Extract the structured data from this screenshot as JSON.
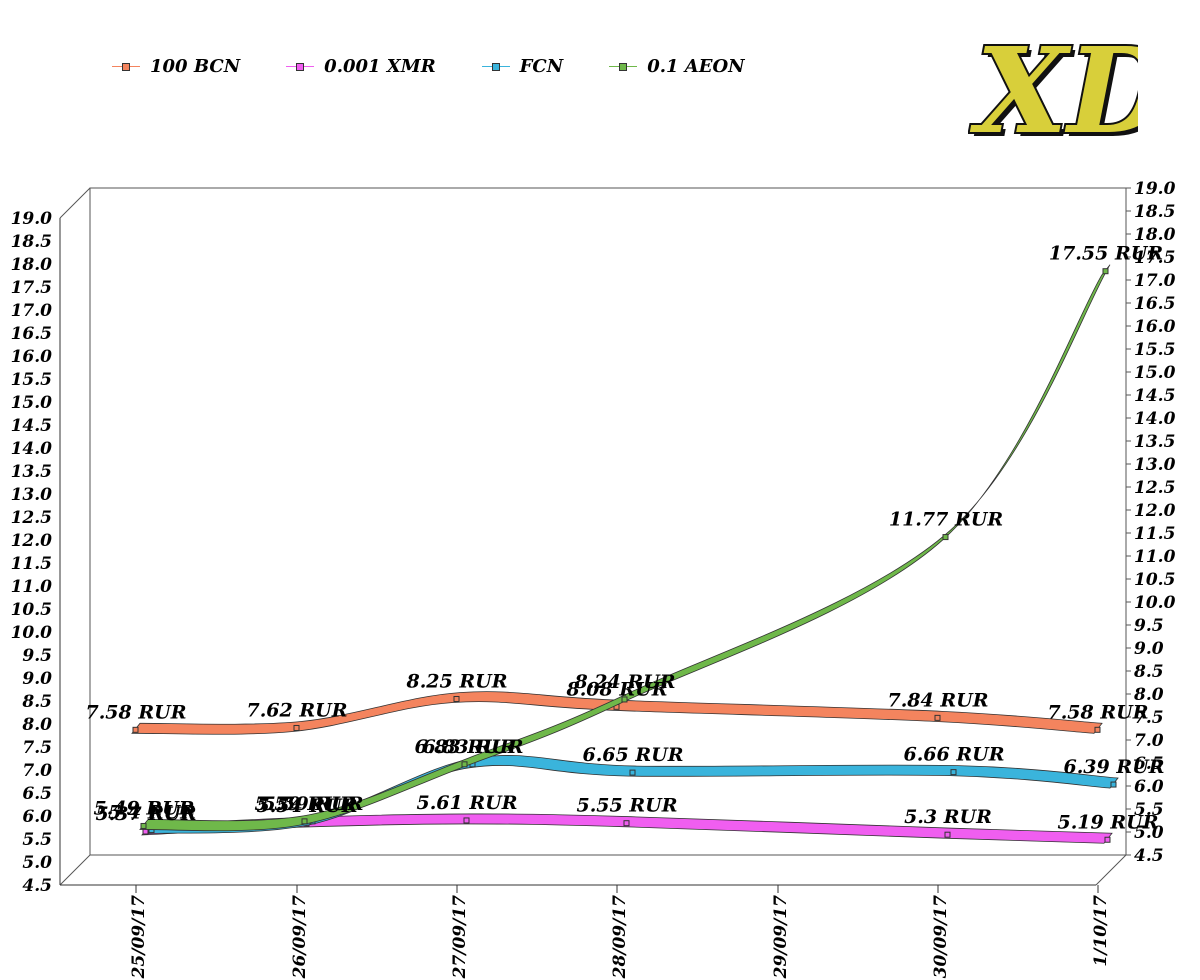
{
  "chart_data": {
    "type": "line",
    "title": "",
    "xlabel": "",
    "ylabel": "",
    "x": [
      "25/09/17",
      "26/09/17",
      "27/09/17",
      "28/09/17",
      "29/09/17",
      "30/09/17",
      "1/10/17"
    ],
    "ylim": [
      4.5,
      19.0
    ],
    "ytick_step": 0.5,
    "grid": false,
    "legend_position": "top-left",
    "series": [
      {
        "name": "100 BCN",
        "color": "#f4845e",
        "points": [
          {
            "x": "25/09/17",
            "y": 7.58,
            "label": "7.58 RUR"
          },
          {
            "x": "26/09/17",
            "y": 7.62,
            "label": "7.62 RUR"
          },
          {
            "x": "27/09/17",
            "y": 8.25,
            "label": "8.25 RUR"
          },
          {
            "x": "28/09/17",
            "y": 8.08,
            "label": "8.08 RUR"
          },
          {
            "x": "30/09/17",
            "y": 7.84,
            "label": "7.84 RUR"
          },
          {
            "x": "1/10/17",
            "y": 7.58,
            "label": "7.58 RUR"
          }
        ]
      },
      {
        "name": "0.001 XMR",
        "color": "#f05ef0",
        "points": [
          {
            "x": "25/09/17",
            "y": 5.37,
            "label": "5.37 RUR"
          },
          {
            "x": "26/09/17",
            "y": 5.54,
            "label": "5.54 RUR"
          },
          {
            "x": "27/09/17",
            "y": 5.61,
            "label": "5.61 RUR"
          },
          {
            "x": "28/09/17",
            "y": 5.55,
            "label": "5.55 RUR"
          },
          {
            "x": "30/09/17",
            "y": 5.3,
            "label": "5.3 RUR"
          },
          {
            "x": "1/10/17",
            "y": 5.19,
            "label": "5.19 RUR"
          }
        ]
      },
      {
        "name": "FCN",
        "color": "#3ab4dc",
        "points": [
          {
            "x": "25/09/17",
            "y": 5.4,
            "label": "5.4 RUR"
          },
          {
            "x": "26/09/17",
            "y": 5.59,
            "label": "5.59 RUR"
          },
          {
            "x": "27/09/17",
            "y": 6.83,
            "label": "6.83 RUR"
          },
          {
            "x": "28/09/17",
            "y": 6.65,
            "label": "6.65 RUR"
          },
          {
            "x": "30/09/17",
            "y": 6.66,
            "label": "6.66 RUR"
          },
          {
            "x": "1/10/17",
            "y": 6.39,
            "label": "6.39 RUR"
          }
        ]
      },
      {
        "name": "0.1 AEON",
        "color": "#6fb84a",
        "points": [
          {
            "x": "25/09/17",
            "y": 5.49,
            "label": "5.49 RUR"
          },
          {
            "x": "26/09/17",
            "y": 5.59,
            "label": "5.59 RUR"
          },
          {
            "x": "27/09/17",
            "y": 6.83,
            "label": "6.83 RUR"
          },
          {
            "x": "28/09/17",
            "y": 8.24,
            "label": "8.24 RUR"
          },
          {
            "x": "30/09/17",
            "y": 11.77,
            "label": "11.77 RUR"
          },
          {
            "x": "1/10/17",
            "y": 17.55,
            "label": "17.55 RUR"
          }
        ]
      }
    ]
  },
  "logo": {
    "text": "XD",
    "fill": "#d8cf3a",
    "outline": "#111111"
  }
}
